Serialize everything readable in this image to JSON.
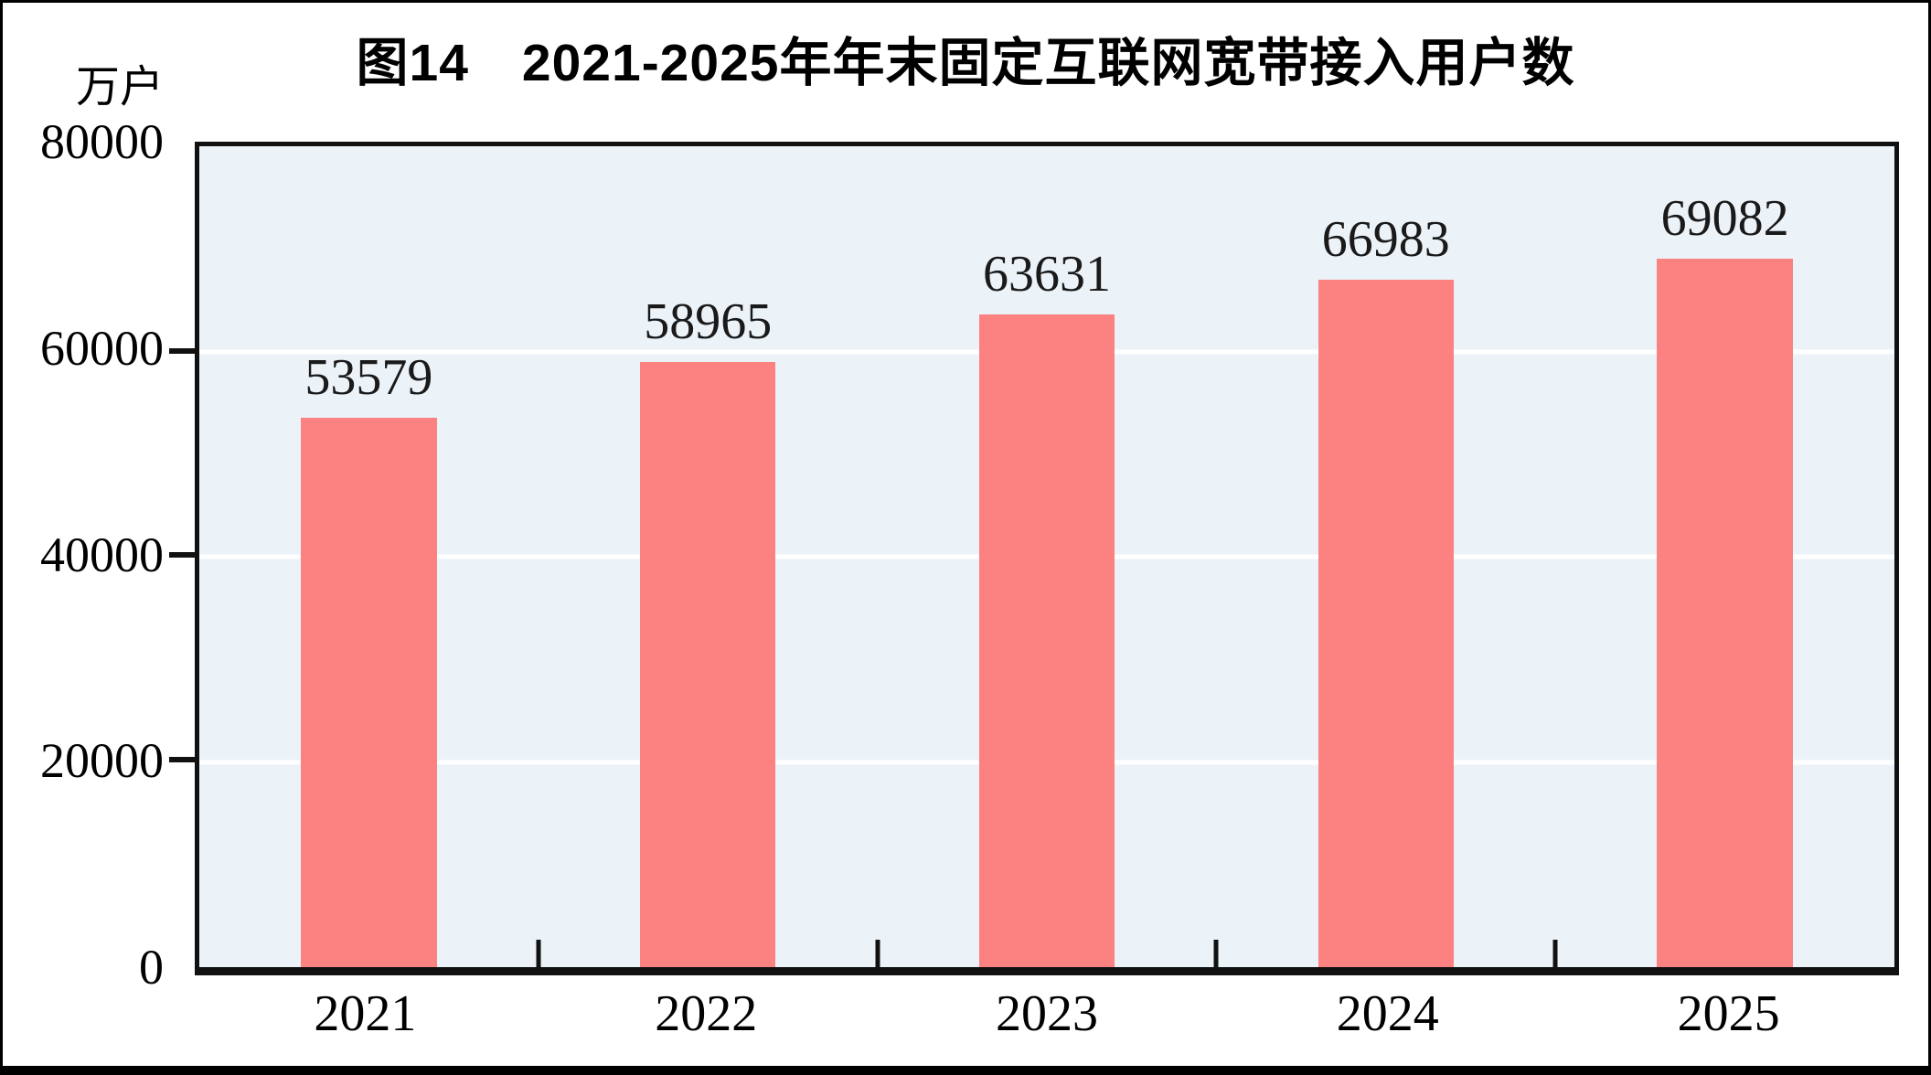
{
  "figure": {
    "title": "图14　2021-2025年年末固定互联网宽带接入用户数",
    "unit_label": "万户"
  },
  "chart_data": {
    "type": "bar",
    "title": "图14　2021-2025年年末固定互联网宽带接入用户数",
    "ylabel": "万户",
    "xlabel": "",
    "categories": [
      "2021",
      "2022",
      "2023",
      "2024",
      "2025"
    ],
    "values": [
      53579,
      58965,
      63631,
      66983,
      69082
    ],
    "ylim": [
      0,
      80000
    ],
    "yticks": [
      0,
      20000,
      40000,
      60000,
      80000
    ],
    "gridline_values": [
      20000,
      40000,
      60000
    ],
    "legend": "none",
    "data_labels": "above bars",
    "colors": {
      "bar": "#FC8181",
      "plot_background": "#ECF3F8",
      "gridline": "#FFFFFF",
      "axis": "#111111",
      "text": "#1A1A1A"
    }
  }
}
